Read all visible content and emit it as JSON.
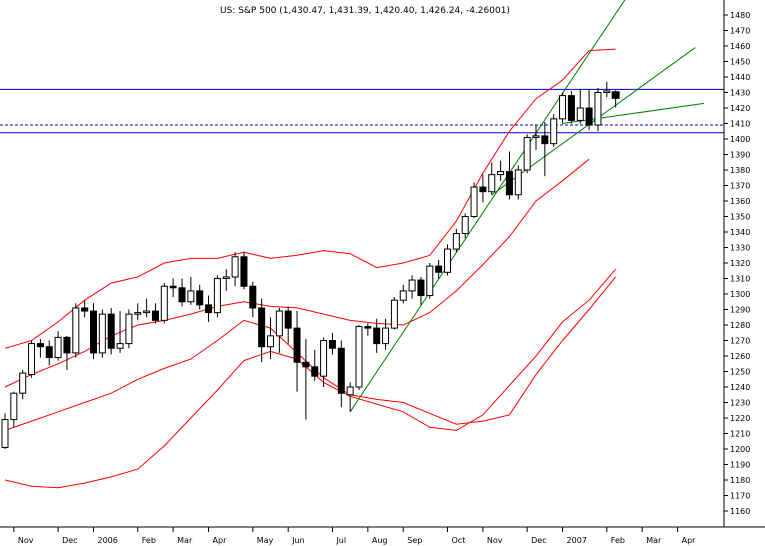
{
  "chart_data": {
    "type": "candlestick",
    "title": "US: S&P 500 (1,430.47, 1,431.39, 1,420.40, 1,426.24, -4.26001)",
    "xlabel": "",
    "ylabel": "",
    "ylim": [
      1150,
      1490
    ],
    "y_ticks": [
      1160,
      1170,
      1180,
      1190,
      1200,
      1210,
      1220,
      1230,
      1240,
      1250,
      1260,
      1270,
      1280,
      1290,
      1300,
      1310,
      1320,
      1330,
      1340,
      1350,
      1360,
      1370,
      1380,
      1390,
      1400,
      1410,
      1420,
      1430,
      1440,
      1450,
      1460,
      1470,
      1480
    ],
    "x_ticks": [
      {
        "label": "Nov",
        "week": 1
      },
      {
        "label": "Dec",
        "week": 6
      },
      {
        "label": "2006",
        "week": 10
      },
      {
        "label": "Feb",
        "week": 15
      },
      {
        "label": "Mar",
        "week": 19
      },
      {
        "label": "Apr",
        "week": 23
      },
      {
        "label": "May",
        "week": 28
      },
      {
        "label": "Jun",
        "week": 32
      },
      {
        "label": "Jul",
        "week": 37
      },
      {
        "label": "Aug",
        "week": 41
      },
      {
        "label": "Sep",
        "week": 45
      },
      {
        "label": "Oct",
        "week": 50
      },
      {
        "label": "Nov",
        "week": 54
      },
      {
        "label": "Dec",
        "week": 59
      },
      {
        "label": "2007",
        "week": 63
      },
      {
        "label": "Feb",
        "week": 68
      },
      {
        "label": "Mar",
        "week": 72
      },
      {
        "label": "Apr",
        "week": 76
      }
    ],
    "candles": [
      {
        "o": 1201,
        "h": 1223,
        "l": 1200,
        "c": 1219
      },
      {
        "o": 1219,
        "h": 1237,
        "l": 1214,
        "c": 1236
      },
      {
        "o": 1236,
        "h": 1251,
        "l": 1232,
        "c": 1249
      },
      {
        "o": 1248,
        "h": 1270,
        "l": 1246,
        "c": 1268
      },
      {
        "o": 1268,
        "h": 1271,
        "l": 1259,
        "c": 1266
      },
      {
        "o": 1266,
        "h": 1270,
        "l": 1254,
        "c": 1259
      },
      {
        "o": 1259,
        "h": 1276,
        "l": 1257,
        "c": 1272
      },
      {
        "o": 1272,
        "h": 1273,
        "l": 1251,
        "c": 1262
      },
      {
        "o": 1262,
        "h": 1294,
        "l": 1259,
        "c": 1291
      },
      {
        "o": 1291,
        "h": 1296,
        "l": 1285,
        "c": 1289
      },
      {
        "o": 1289,
        "h": 1294,
        "l": 1258,
        "c": 1262
      },
      {
        "o": 1262,
        "h": 1290,
        "l": 1259,
        "c": 1287
      },
      {
        "o": 1287,
        "h": 1291,
        "l": 1261,
        "c": 1265
      },
      {
        "o": 1265,
        "h": 1289,
        "l": 1262,
        "c": 1268
      },
      {
        "o": 1268,
        "h": 1290,
        "l": 1265,
        "c": 1287
      },
      {
        "o": 1287,
        "h": 1294,
        "l": 1283,
        "c": 1288
      },
      {
        "o": 1288,
        "h": 1297,
        "l": 1285,
        "c": 1289
      },
      {
        "o": 1289,
        "h": 1294,
        "l": 1281,
        "c": 1283
      },
      {
        "o": 1283,
        "h": 1307,
        "l": 1281,
        "c": 1305
      },
      {
        "o": 1305,
        "h": 1310,
        "l": 1298,
        "c": 1304
      },
      {
        "o": 1304,
        "h": 1310,
        "l": 1292,
        "c": 1295
      },
      {
        "o": 1295,
        "h": 1311,
        "l": 1293,
        "c": 1302
      },
      {
        "o": 1302,
        "h": 1306,
        "l": 1290,
        "c": 1293
      },
      {
        "o": 1293,
        "h": 1299,
        "l": 1282,
        "c": 1288
      },
      {
        "o": 1288,
        "h": 1312,
        "l": 1285,
        "c": 1310
      },
      {
        "o": 1310,
        "h": 1316,
        "l": 1302,
        "c": 1311
      },
      {
        "o": 1311,
        "h": 1327,
        "l": 1305,
        "c": 1324
      },
      {
        "o": 1324,
        "h": 1327,
        "l": 1303,
        "c": 1305
      },
      {
        "o": 1305,
        "h": 1308,
        "l": 1285,
        "c": 1291
      },
      {
        "o": 1291,
        "h": 1297,
        "l": 1256,
        "c": 1266
      },
      {
        "o": 1266,
        "h": 1285,
        "l": 1258,
        "c": 1273
      },
      {
        "o": 1273,
        "h": 1291,
        "l": 1262,
        "c": 1289
      },
      {
        "o": 1289,
        "h": 1292,
        "l": 1268,
        "c": 1278
      },
      {
        "o": 1278,
        "h": 1289,
        "l": 1237,
        "c": 1256
      },
      {
        "o": 1256,
        "h": 1271,
        "l": 1219,
        "c": 1253
      },
      {
        "o": 1253,
        "h": 1264,
        "l": 1244,
        "c": 1247
      },
      {
        "o": 1247,
        "h": 1272,
        "l": 1240,
        "c": 1270
      },
      {
        "o": 1270,
        "h": 1275,
        "l": 1261,
        "c": 1265
      },
      {
        "o": 1265,
        "h": 1270,
        "l": 1227,
        "c": 1236
      },
      {
        "o": 1235,
        "h": 1243,
        "l": 1224,
        "c": 1240
      },
      {
        "o": 1240,
        "h": 1280,
        "l": 1238,
        "c": 1279
      },
      {
        "o": 1279,
        "h": 1281,
        "l": 1273,
        "c": 1278
      },
      {
        "o": 1278,
        "h": 1284,
        "l": 1262,
        "c": 1268
      },
      {
        "o": 1268,
        "h": 1284,
        "l": 1264,
        "c": 1278
      },
      {
        "o": 1278,
        "h": 1298,
        "l": 1277,
        "c": 1296
      },
      {
        "o": 1296,
        "h": 1306,
        "l": 1294,
        "c": 1302
      },
      {
        "o": 1302,
        "h": 1312,
        "l": 1297,
        "c": 1309
      },
      {
        "o": 1309,
        "h": 1311,
        "l": 1293,
        "c": 1299
      },
      {
        "o": 1299,
        "h": 1320,
        "l": 1297,
        "c": 1318
      },
      {
        "o": 1318,
        "h": 1322,
        "l": 1310,
        "c": 1314
      },
      {
        "o": 1314,
        "h": 1332,
        "l": 1312,
        "c": 1329
      },
      {
        "o": 1329,
        "h": 1342,
        "l": 1327,
        "c": 1339
      },
      {
        "o": 1339,
        "h": 1352,
        "l": 1336,
        "c": 1350
      },
      {
        "o": 1350,
        "h": 1372,
        "l": 1349,
        "c": 1369
      },
      {
        "o": 1369,
        "h": 1377,
        "l": 1359,
        "c": 1366
      },
      {
        "o": 1366,
        "h": 1385,
        "l": 1364,
        "c": 1377
      },
      {
        "o": 1377,
        "h": 1386,
        "l": 1373,
        "c": 1379
      },
      {
        "o": 1379,
        "h": 1392,
        "l": 1361,
        "c": 1364
      },
      {
        "o": 1364,
        "h": 1383,
        "l": 1361,
        "c": 1380
      },
      {
        "o": 1380,
        "h": 1403,
        "l": 1378,
        "c": 1401
      },
      {
        "o": 1401,
        "h": 1409,
        "l": 1393,
        "c": 1402
      },
      {
        "o": 1402,
        "h": 1411,
        "l": 1376,
        "c": 1397
      },
      {
        "o": 1397,
        "h": 1416,
        "l": 1395,
        "c": 1413
      },
      {
        "o": 1413,
        "h": 1430,
        "l": 1410,
        "c": 1428
      },
      {
        "o": 1428,
        "h": 1431,
        "l": 1410,
        "c": 1412
      },
      {
        "o": 1412,
        "h": 1432,
        "l": 1410,
        "c": 1420
      },
      {
        "o": 1420,
        "h": 1432,
        "l": 1406,
        "c": 1409
      },
      {
        "o": 1409,
        "h": 1433,
        "l": 1405,
        "c": 1430
      },
      {
        "o": 1430,
        "h": 1437,
        "l": 1427,
        "c": 1431
      },
      {
        "o": 1430.47,
        "h": 1431.39,
        "l": 1420.4,
        "c": 1426.24
      }
    ],
    "overlays": [
      {
        "name": "",
        "kind": "band",
        "color": "#ff0000",
        "points": [
          [
            0,
            1265
          ],
          [
            3,
            1270
          ],
          [
            6,
            1282
          ],
          [
            9,
            1296
          ],
          [
            12,
            1307
          ],
          [
            15,
            1311
          ],
          [
            18,
            1320
          ],
          [
            21,
            1323
          ],
          [
            24,
            1323
          ],
          [
            27,
            1327
          ],
          [
            30,
            1323
          ],
          [
            33,
            1325
          ],
          [
            36,
            1328
          ],
          [
            39,
            1326
          ],
          [
            42,
            1317
          ],
          [
            45,
            1320
          ],
          [
            48,
            1325
          ],
          [
            51,
            1347
          ],
          [
            54,
            1378
          ],
          [
            57,
            1405
          ],
          [
            60,
            1426
          ],
          [
            63,
            1438
          ],
          [
            66,
            1457
          ],
          [
            69,
            1458
          ]
        ]
      },
      {
        "name": "",
        "kind": "band",
        "color": "#ff0000",
        "points": [
          [
            0,
            1240
          ],
          [
            3,
            1248
          ],
          [
            6,
            1255
          ],
          [
            9,
            1263
          ],
          [
            12,
            1273
          ],
          [
            15,
            1280
          ],
          [
            18,
            1283
          ],
          [
            21,
            1287
          ],
          [
            24,
            1292
          ],
          [
            27,
            1295
          ],
          [
            30,
            1292
          ],
          [
            33,
            1291
          ],
          [
            36,
            1287
          ],
          [
            39,
            1283
          ],
          [
            42,
            1281
          ],
          [
            45,
            1280
          ],
          [
            48,
            1288
          ],
          [
            51,
            1302
          ],
          [
            54,
            1319
          ],
          [
            57,
            1337
          ],
          [
            60,
            1360
          ],
          [
            63,
            1373
          ],
          [
            66,
            1387
          ]
        ]
      },
      {
        "name": "",
        "kind": "band",
        "color": "#ff0000",
        "points": [
          [
            0,
            1212
          ],
          [
            3,
            1218
          ],
          [
            6,
            1224
          ],
          [
            9,
            1230
          ],
          [
            12,
            1236
          ],
          [
            15,
            1245
          ],
          [
            18,
            1252
          ],
          [
            21,
            1258
          ],
          [
            24,
            1270
          ],
          [
            27,
            1283
          ],
          [
            30,
            1278
          ],
          [
            33,
            1262
          ],
          [
            36,
            1246
          ],
          [
            39,
            1235
          ],
          [
            42,
            1232
          ],
          [
            45,
            1230
          ],
          [
            48,
            1223
          ],
          [
            51,
            1216
          ],
          [
            54,
            1218
          ],
          [
            57,
            1222
          ],
          [
            60,
            1248
          ],
          [
            63,
            1270
          ],
          [
            66,
            1290
          ],
          [
            69,
            1311
          ]
        ]
      },
      {
        "name": "",
        "kind": "band",
        "color": "#ff0000",
        "points": [
          [
            0,
            1180
          ],
          [
            3,
            1176
          ],
          [
            6,
            1175
          ],
          [
            9,
            1178
          ],
          [
            12,
            1182
          ],
          [
            15,
            1187
          ],
          [
            18,
            1202
          ],
          [
            21,
            1220
          ],
          [
            24,
            1238
          ],
          [
            27,
            1257
          ],
          [
            30,
            1263
          ],
          [
            33,
            1258
          ],
          [
            36,
            1243
          ],
          [
            39,
            1234
          ],
          [
            42,
            1229
          ],
          [
            45,
            1224
          ],
          [
            48,
            1214
          ],
          [
            51,
            1212
          ],
          [
            54,
            1222
          ],
          [
            57,
            1241
          ],
          [
            60,
            1260
          ],
          [
            63,
            1282
          ],
          [
            66,
            1296
          ],
          [
            69,
            1316
          ]
        ]
      }
    ],
    "trendlines": [
      {
        "color": "#008000",
        "from": [
          39,
          1224
        ],
        "to": [
          71,
          1498
        ]
      },
      {
        "color": "#008000",
        "from": [
          55,
          1364
        ],
        "to": [
          78,
          1459
        ]
      },
      {
        "color": "#008000",
        "from": [
          63,
          1410
        ],
        "to": [
          79,
          1423
        ]
      }
    ],
    "horizontal_lines": [
      {
        "value": 1432,
        "style": "solid",
        "color": "#0000cc"
      },
      {
        "value": 1409,
        "style": "dashed",
        "color": "#0000cc"
      },
      {
        "value": 1404,
        "style": "solid",
        "color": "#0000cc"
      }
    ],
    "grid": false,
    "legend": "none",
    "colors": {
      "up_body": "#ffffff",
      "down_body": "#000000",
      "candle_line": "#000000",
      "band": "#ff0000",
      "trend": "#008000",
      "level": "#0000cc",
      "axis": "#000000"
    }
  }
}
